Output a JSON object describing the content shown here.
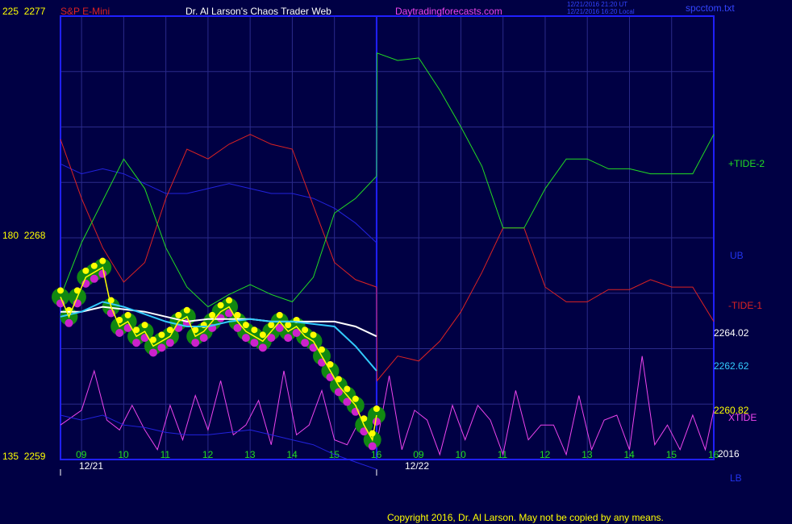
{
  "header": {
    "axis_top_left": "225  2277",
    "instrument": "S&P E-Mini",
    "title": "Dr. Al Larson's Chaos Trader Web",
    "site": "Daytradingforecasts.com",
    "time_line1": "12/21/2016 21:20 UT",
    "time_line2": "12/21/2016 16:20 Local",
    "file": "spcctom.txt"
  },
  "left_axis": {
    "top": "225  2277",
    "mid": "180  2268",
    "bottom": "135  2259"
  },
  "right_labels": {
    "tide2": "+TIDE-2",
    "ub": "UB",
    "tide1": "-TIDE-1",
    "val_white": "2264.02",
    "val_cyan": "2262.62",
    "val_yellow": "2260.82",
    "xtide": "XTIDE",
    "year": "2016",
    "lb": "LB"
  },
  "footer": {
    "copyright": "Copyright 2016, Dr. Al Larson. May not be copied by any means."
  },
  "colors": {
    "background": "#000044",
    "grid": "#2a2a8a",
    "frame": "#2020ff",
    "tide2": "#22dd22",
    "tide1": "#dd2222",
    "band": "#2222dd",
    "xtide": "#ee44ee",
    "price": "#ffff00",
    "white_avg": "#ffffff",
    "cyan_avg": "#33ccff"
  },
  "chart_data": {
    "type": "line",
    "title": "S&P E-Mini",
    "y_left_price_range": [
      2259,
      2277
    ],
    "y_left_index_range": [
      135,
      225
    ],
    "dates": [
      "12/21",
      "12/22"
    ],
    "x_hour_ticks_day1": [
      "09",
      "10",
      "11",
      "12",
      "13",
      "14",
      "15",
      "16"
    ],
    "x_hour_ticks_day2": [
      "09",
      "10",
      "11",
      "12",
      "13",
      "14",
      "15",
      "16"
    ],
    "last_values": {
      "white_avg": 2264.02,
      "cyan_avg": 2262.62,
      "price": 2260.82
    },
    "series": [
      {
        "name": "+TIDE-2",
        "x": [
          8.5,
          9,
          9.5,
          10,
          10.5,
          11,
          11.5,
          12,
          12.5,
          13,
          13.5,
          14,
          14.5,
          15,
          15.5,
          16,
          16.01,
          16.5,
          17,
          17.5,
          18,
          18.5,
          19,
          19.5,
          20,
          20.5,
          21,
          21.5,
          22,
          22.5,
          23,
          23.5,
          24
        ],
        "y": [
          2265.6,
          2267.8,
          2269.5,
          2271.2,
          2270.0,
          2267.6,
          2266.0,
          2265.2,
          2265.7,
          2266.1,
          2265.7,
          2265.4,
          2266.4,
          2269.0,
          2269.6,
          2270.5,
          2275.5,
          2275.2,
          2275.3,
          2274.0,
          2272.5,
          2270.9,
          2268.4,
          2268.4,
          2270.0,
          2271.2,
          2271.2,
          2270.8,
          2270.8,
          2270.6,
          2270.6,
          2270.6,
          2272.2
        ]
      },
      {
        "name": "-TIDE-1",
        "x": [
          8.5,
          9,
          9.5,
          10,
          10.5,
          11,
          11.5,
          12,
          12.5,
          13,
          13.5,
          14,
          14.5,
          15,
          15.5,
          16,
          16.01,
          16.5,
          17,
          17.5,
          18,
          18.5,
          19,
          19.5,
          20,
          20.5,
          21,
          21.5,
          22,
          22.5,
          23,
          23.5,
          24
        ],
        "y": [
          2272.0,
          2269.6,
          2267.6,
          2266.2,
          2267.0,
          2269.6,
          2271.6,
          2271.2,
          2271.8,
          2272.2,
          2271.8,
          2271.6,
          2269.3,
          2267.0,
          2266.3,
          2266.0,
          2262.2,
          2263.2,
          2263.0,
          2263.8,
          2265.0,
          2266.6,
          2268.4,
          2268.4,
          2266.0,
          2265.4,
          2265.4,
          2265.9,
          2265.9,
          2266.3,
          2266.0,
          2266.0,
          2264.6
        ]
      },
      {
        "name": "UB",
        "x": [
          8.5,
          9,
          9.5,
          10,
          10.5,
          11,
          11.5,
          12,
          12.5,
          13,
          13.5,
          14,
          14.5,
          15,
          15.5,
          16
        ],
        "y": [
          2271.0,
          2270.6,
          2270.8,
          2270.6,
          2270.2,
          2269.8,
          2269.8,
          2270.0,
          2270.2,
          2270.0,
          2269.8,
          2269.8,
          2269.6,
          2269.2,
          2268.6,
          2267.8
        ]
      },
      {
        "name": "LB",
        "x": [
          8.5,
          9,
          9.5,
          10,
          10.5,
          11,
          11.5,
          12,
          12.5,
          13,
          13.5,
          14,
          14.5,
          15,
          15.5,
          16
        ],
        "y": [
          2260.8,
          2260.6,
          2260.8,
          2260.4,
          2260.3,
          2260.1,
          2260.0,
          2260.0,
          2260.1,
          2260.2,
          2260.0,
          2259.8,
          2259.6,
          2259.2,
          2258.9,
          2258.6
        ]
      },
      {
        "name": "XTIDE",
        "x": [
          8.5,
          9,
          9.3,
          9.6,
          9.9,
          10.2,
          10.5,
          10.8,
          11.1,
          11.4,
          11.7,
          12,
          12.3,
          12.6,
          12.9,
          13.2,
          13.5,
          13.8,
          14.1,
          14.4,
          14.7,
          15,
          15.3,
          15.6,
          16,
          16.3,
          16.6,
          16.9,
          17.2,
          17.5,
          17.8,
          18.1,
          18.4,
          18.7,
          19,
          19.3,
          19.6,
          19.9,
          20.2,
          20.5,
          20.8,
          21.1,
          21.4,
          21.7,
          22,
          22.3,
          22.6,
          22.9,
          23.2,
          23.5,
          23.8,
          24
        ],
        "y": [
          2260.4,
          2261.0,
          2262.6,
          2260.6,
          2260.2,
          2261.2,
          2260.2,
          2259.4,
          2261.2,
          2259.8,
          2261.6,
          2260.2,
          2262.2,
          2260.0,
          2260.4,
          2261.4,
          2259.6,
          2262.6,
          2260.0,
          2260.4,
          2261.8,
          2259.8,
          2259.6,
          2260.6,
          2259.6,
          2262.4,
          2259.4,
          2261.0,
          2260.6,
          2259.2,
          2261.2,
          2259.8,
          2261.2,
          2260.6,
          2259.2,
          2261.8,
          2259.8,
          2260.4,
          2260.4,
          2259.2,
          2261.6,
          2259.4,
          2260.6,
          2260.8,
          2259.4,
          2263.2,
          2259.6,
          2260.4,
          2259.4,
          2260.8,
          2259.4,
          2261.0
        ]
      },
      {
        "name": "Price",
        "x": [
          8.5,
          8.7,
          8.9,
          9.1,
          9.3,
          9.5,
          9.7,
          9.9,
          10.1,
          10.3,
          10.5,
          10.7,
          10.9,
          11.1,
          11.3,
          11.5,
          11.7,
          11.9,
          12.1,
          12.3,
          12.5,
          12.7,
          12.9,
          13.1,
          13.3,
          13.5,
          13.7,
          13.9,
          14.1,
          14.3,
          14.5,
          14.7,
          14.9,
          15.1,
          15.3,
          15.5,
          15.7,
          15.9,
          16
        ],
        "y": [
          2265.6,
          2264.8,
          2265.6,
          2266.4,
          2266.6,
          2266.8,
          2265.2,
          2264.4,
          2264.6,
          2264.0,
          2264.2,
          2263.6,
          2263.8,
          2264.0,
          2264.6,
          2264.8,
          2264.0,
          2264.2,
          2264.6,
          2265.0,
          2265.2,
          2264.6,
          2264.2,
          2264.0,
          2263.8,
          2264.2,
          2264.6,
          2264.2,
          2264.4,
          2264.0,
          2263.8,
          2263.2,
          2262.6,
          2262.0,
          2261.6,
          2261.2,
          2260.4,
          2259.8,
          2260.8
        ]
      },
      {
        "name": "White average",
        "x": [
          8.5,
          9,
          9.5,
          10,
          10.5,
          11,
          11.5,
          12,
          12.5,
          13,
          13.5,
          14,
          14.5,
          15,
          15.5,
          16
        ],
        "y": [
          2265.0,
          2265.0,
          2265.2,
          2265.1,
          2265.0,
          2264.8,
          2264.6,
          2264.7,
          2264.7,
          2264.7,
          2264.6,
          2264.6,
          2264.6,
          2264.6,
          2264.4,
          2264.0
        ]
      },
      {
        "name": "Cyan average",
        "x": [
          8.5,
          9,
          9.5,
          10,
          10.5,
          11,
          11.5,
          12,
          12.5,
          13,
          13.5,
          14,
          14.5,
          15,
          15.5,
          16
        ],
        "y": [
          2264.8,
          2265.0,
          2265.4,
          2265.2,
          2264.9,
          2264.6,
          2264.4,
          2264.4,
          2264.6,
          2264.7,
          2264.6,
          2264.6,
          2264.5,
          2264.4,
          2263.6,
          2262.6
        ]
      }
    ]
  }
}
